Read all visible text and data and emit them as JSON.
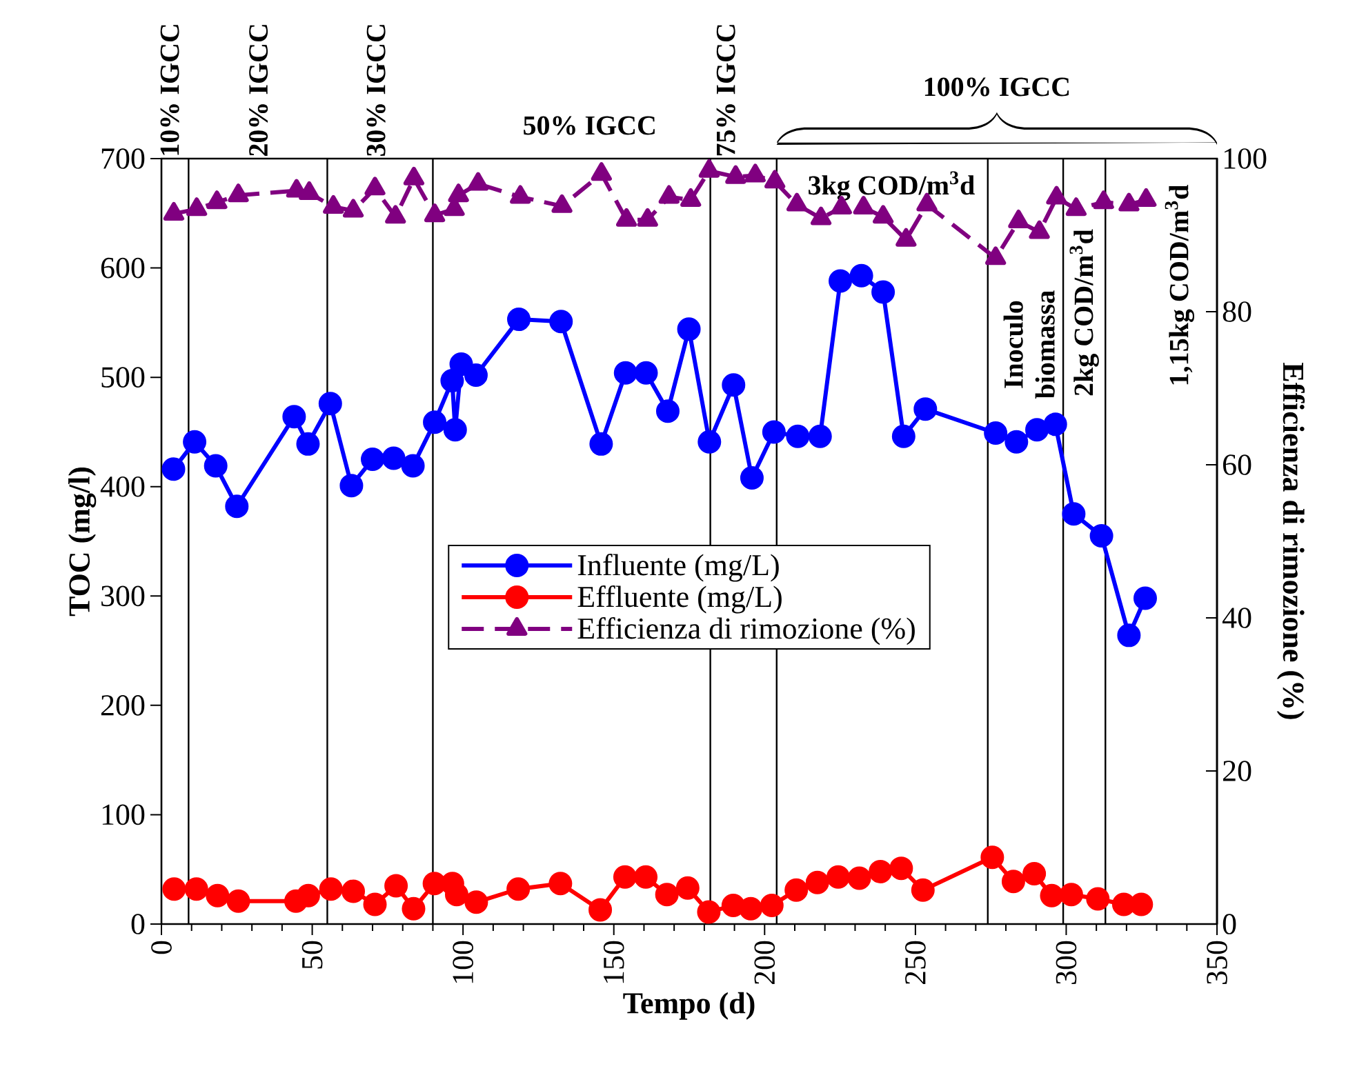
{
  "chart_data": {
    "type": "line",
    "xlabel": "Tempo (d)",
    "ylabel": "TOC (mg/l)",
    "y2label": "Efficienza di rimozione (%)",
    "xlim": [
      0,
      350
    ],
    "xticks": [
      0,
      50,
      100,
      150,
      200,
      250,
      300,
      350
    ],
    "ylim": [
      0,
      700
    ],
    "yticks": [
      0,
      100,
      200,
      300,
      400,
      500,
      600,
      700
    ],
    "y2lim": [
      0,
      100
    ],
    "y2ticks": [
      0,
      20,
      40,
      60,
      80,
      100
    ],
    "legend": "center",
    "grid": false,
    "series": [
      {
        "name": "Influente (mg/L)",
        "color": "#0000ff",
        "marker": "circle",
        "line_style": "solid",
        "x": [
          4,
          11,
          18,
          25,
          44,
          48.6,
          56,
          63,
          70,
          77,
          83.4,
          90.6,
          96.4,
          97.4,
          99.4,
          104.3,
          118.5,
          132.5,
          145.8,
          153.9,
          160.7,
          167.9,
          174.9,
          181.7,
          189.7,
          195.8,
          203.1,
          211,
          218.4,
          225.1,
          232.1,
          239.3,
          246.1,
          253.3,
          276.6,
          283.5,
          290.3,
          296.4,
          302.5,
          311.7,
          320.8,
          326.2
        ],
        "values": [
          416,
          441,
          419,
          382,
          464,
          439,
          476,
          401,
          425,
          426,
          419,
          459,
          497,
          452,
          512,
          502,
          553,
          551,
          439,
          504,
          504,
          469,
          544,
          441,
          493,
          408,
          450,
          446,
          446,
          588,
          593,
          578,
          446,
          471,
          449,
          441,
          452,
          457,
          375,
          355,
          264,
          298
        ]
      },
      {
        "name": "Effluente (mg/L)",
        "color": "#ff0000",
        "marker": "circle",
        "line_style": "solid",
        "x": [
          4.2,
          11.6,
          18.6,
          25.5,
          44.6,
          48.7,
          56.2,
          63.6,
          70.8,
          77.8,
          83.6,
          90.5,
          96.5,
          97.9,
          104.4,
          118.3,
          132.3,
          145.5,
          153.7,
          160.6,
          167.6,
          174.5,
          181.5,
          189.6,
          195.4,
          202.4,
          210.5,
          217.5,
          224.4,
          231.4,
          238.4,
          245.3,
          252.5,
          275.5,
          282.5,
          289.4,
          295.2,
          301.7,
          310.5,
          319.1,
          324.9
        ],
        "values": [
          32,
          32,
          26,
          21,
          21,
          26,
          32,
          30,
          18,
          35,
          14,
          37,
          37,
          27,
          20,
          32,
          37,
          13,
          43,
          43,
          27,
          33,
          11,
          17,
          14,
          17,
          31,
          38,
          43,
          42,
          48,
          51,
          31,
          61,
          39,
          46,
          26,
          27,
          23,
          18,
          18
        ]
      },
      {
        "name": "Efficienza di rimozione (%)",
        "color": "#800080",
        "marker": "triangle",
        "line_style": "dashed",
        "axis": "y2",
        "x": [
          4.1,
          11.7,
          18.4,
          25.5,
          44.8,
          49,
          57,
          63.6,
          70.8,
          77.6,
          83.7,
          90.6,
          97.1,
          98.5,
          105,
          119,
          132.8,
          145.9,
          154.2,
          161.2,
          168.3,
          175.5,
          181.6,
          190.4,
          196.9,
          203.4,
          210.7,
          218.7,
          225.5,
          232.8,
          239.3,
          246.9,
          253.8,
          276.6,
          284.2,
          291.1,
          296.8,
          303.3,
          312.4,
          320.8,
          326.5
        ],
        "values": [
          92.8,
          93.4,
          94.3,
          95.2,
          95.8,
          95.5,
          93.7,
          93.2,
          96.1,
          92.4,
          97.4,
          92.6,
          93.4,
          95.2,
          96.7,
          95,
          93.8,
          98,
          92,
          92,
          95,
          94.6,
          98.4,
          97.6,
          97.8,
          97,
          94,
          92.2,
          93.6,
          93.6,
          92.4,
          89.4,
          94,
          87,
          91.8,
          90.4,
          94.9,
          93.4,
          94.3,
          94,
          94.6
        ]
      }
    ],
    "ref_lines": [
      {
        "axis": "x",
        "value": 9,
        "color": "#000000"
      },
      {
        "axis": "x",
        "value": 55,
        "color": "#000000"
      },
      {
        "axis": "x",
        "value": 90,
        "color": "#000000"
      },
      {
        "axis": "x",
        "value": 182,
        "color": "#000000"
      },
      {
        "axis": "x",
        "value": 204,
        "color": "#000000"
      },
      {
        "axis": "x",
        "value": 274,
        "color": "#000000"
      },
      {
        "axis": "x",
        "value": 299,
        "color": "#000000"
      },
      {
        "axis": "x",
        "value": 313,
        "color": "#000000"
      }
    ],
    "annotations": [
      "10% IGCC",
      "20% IGCC",
      "30% IGCC",
      "50%  IGCC",
      "75% IGCC",
      "3kg COD/m$^{3}$d",
      "Inoculo biomassa",
      "2kg COD/m$^{3}$d",
      "1,15kg COD/m$^{3}$d",
      "100%  IGCC"
    ]
  }
}
